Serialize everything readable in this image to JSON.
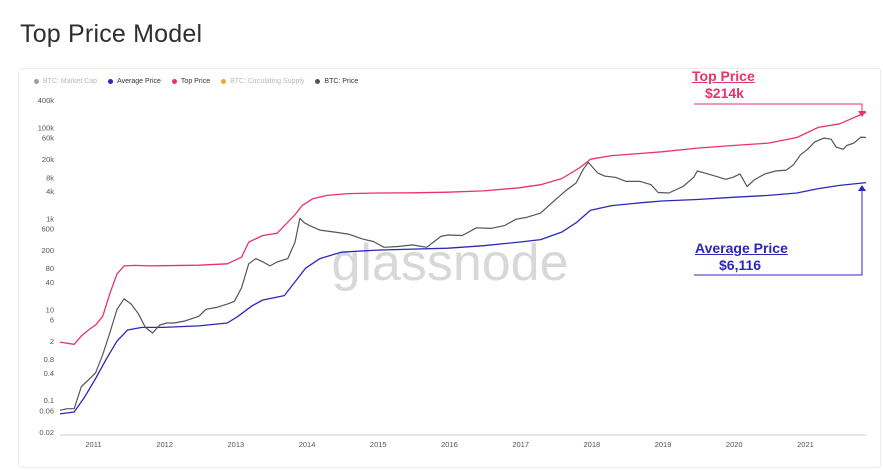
{
  "page": {
    "title": "Top Price Model"
  },
  "watermark": "glassnode",
  "legend": [
    {
      "label": "BTC: Market Cap",
      "color": "#9e9e9e",
      "active": false
    },
    {
      "label": "Average Price",
      "color": "#2c28b8",
      "active": true
    },
    {
      "label": "Top Price",
      "color": "#e8336a",
      "active": true
    },
    {
      "label": "BTC: Circulating Supply",
      "color": "#f5a623",
      "active": false
    },
    {
      "label": "BTC: Price",
      "color": "#555555",
      "active": true
    }
  ],
  "annotations": {
    "top": {
      "title": "Top Price",
      "value": "$214k"
    },
    "average": {
      "title": "Average Price",
      "value": "$6,116"
    }
  },
  "chart_data": {
    "type": "line",
    "title": "",
    "xlabel": "",
    "ylabel": "",
    "y_scale": "log",
    "ylim": [
      0.02,
      400000
    ],
    "xlim": [
      2010.55,
      2021.87
    ],
    "y_ticks": [
      {
        "value": 0.02,
        "label": "0.02"
      },
      {
        "value": 0.06,
        "label": "0.06"
      },
      {
        "value": 0.1,
        "label": "0.1"
      },
      {
        "value": 0.4,
        "label": "0.4"
      },
      {
        "value": 0.8,
        "label": "0.8"
      },
      {
        "value": 2,
        "label": "2"
      },
      {
        "value": 6,
        "label": "6"
      },
      {
        "value": 10,
        "label": "10"
      },
      {
        "value": 40,
        "label": "40"
      },
      {
        "value": 80,
        "label": "80"
      },
      {
        "value": 200,
        "label": "200"
      },
      {
        "value": 600,
        "label": "600"
      },
      {
        "value": 1000,
        "label": "1k"
      },
      {
        "value": 4000,
        "label": "4k"
      },
      {
        "value": 8000,
        "label": "8k"
      },
      {
        "value": 20000,
        "label": "20k"
      },
      {
        "value": 60000,
        "label": "60k"
      },
      {
        "value": 100000,
        "label": "100k"
      },
      {
        "value": 400000,
        "label": "400k"
      }
    ],
    "x_ticks": [
      {
        "value": 2011,
        "label": "2011"
      },
      {
        "value": 2012,
        "label": "2012"
      },
      {
        "value": 2013,
        "label": "2013"
      },
      {
        "value": 2014,
        "label": "2014"
      },
      {
        "value": 2015,
        "label": "2015"
      },
      {
        "value": 2016,
        "label": "2016"
      },
      {
        "value": 2017,
        "label": "2017"
      },
      {
        "value": 2018,
        "label": "2018"
      },
      {
        "value": 2019,
        "label": "2019"
      },
      {
        "value": 2020,
        "label": "2020"
      },
      {
        "value": 2021,
        "label": "2021"
      }
    ],
    "series": [
      {
        "name": "Top Price",
        "color": "#e8336a",
        "points": [
          [
            2010.55,
            1.9
          ],
          [
            2010.75,
            1.7
          ],
          [
            2010.85,
            2.6
          ],
          [
            2010.95,
            3.5
          ],
          [
            2011.05,
            4.5
          ],
          [
            2011.15,
            7
          ],
          [
            2011.25,
            22
          ],
          [
            2011.35,
            60
          ],
          [
            2011.45,
            90
          ],
          [
            2011.6,
            92
          ],
          [
            2011.8,
            90
          ],
          [
            2012.0,
            91
          ],
          [
            2012.5,
            93
          ],
          [
            2012.9,
            100
          ],
          [
            2013.1,
            140
          ],
          [
            2013.2,
            300
          ],
          [
            2013.4,
            420
          ],
          [
            2013.6,
            470
          ],
          [
            2013.85,
            1200
          ],
          [
            2013.95,
            1900
          ],
          [
            2014.1,
            2700
          ],
          [
            2014.3,
            3200
          ],
          [
            2014.6,
            3500
          ],
          [
            2015.0,
            3600
          ],
          [
            2015.5,
            3650
          ],
          [
            2016.0,
            3750
          ],
          [
            2016.5,
            4000
          ],
          [
            2017.0,
            4700
          ],
          [
            2017.3,
            5500
          ],
          [
            2017.6,
            7500
          ],
          [
            2017.85,
            13000
          ],
          [
            2018.0,
            20000
          ],
          [
            2018.3,
            24000
          ],
          [
            2018.6,
            26000
          ],
          [
            2019.0,
            29000
          ],
          [
            2019.5,
            35000
          ],
          [
            2020.0,
            40000
          ],
          [
            2020.5,
            45000
          ],
          [
            2020.9,
            60000
          ],
          [
            2021.2,
            100000
          ],
          [
            2021.5,
            120000
          ],
          [
            2021.87,
            214000
          ]
        ]
      },
      {
        "name": "Average Price",
        "color": "#2c28b8",
        "points": [
          [
            2010.55,
            0.05
          ],
          [
            2010.75,
            0.055
          ],
          [
            2010.9,
            0.12
          ],
          [
            2011.05,
            0.3
          ],
          [
            2011.2,
            0.8
          ],
          [
            2011.35,
            2
          ],
          [
            2011.5,
            3.5
          ],
          [
            2011.7,
            4
          ],
          [
            2012.0,
            4
          ],
          [
            2012.5,
            4.3
          ],
          [
            2012.9,
            5
          ],
          [
            2013.05,
            7
          ],
          [
            2013.25,
            12
          ],
          [
            2013.4,
            16
          ],
          [
            2013.7,
            20
          ],
          [
            2013.85,
            40
          ],
          [
            2014.0,
            80
          ],
          [
            2014.2,
            130
          ],
          [
            2014.5,
            180
          ],
          [
            2015.0,
            200
          ],
          [
            2015.5,
            210
          ],
          [
            2016.0,
            220
          ],
          [
            2016.5,
            250
          ],
          [
            2017.0,
            300
          ],
          [
            2017.3,
            340
          ],
          [
            2017.6,
            500
          ],
          [
            2017.8,
            800
          ],
          [
            2018.0,
            1500
          ],
          [
            2018.3,
            1900
          ],
          [
            2018.7,
            2200
          ],
          [
            2019.0,
            2400
          ],
          [
            2019.5,
            2600
          ],
          [
            2020.0,
            2900
          ],
          [
            2020.5,
            3200
          ],
          [
            2020.9,
            3600
          ],
          [
            2021.2,
            4500
          ],
          [
            2021.5,
            5300
          ],
          [
            2021.87,
            6116
          ]
        ]
      },
      {
        "name": "BTC: Price",
        "color": "#555555",
        "points": [
          [
            2010.55,
            0.06
          ],
          [
            2010.65,
            0.065
          ],
          [
            2010.75,
            0.065
          ],
          [
            2010.85,
            0.2
          ],
          [
            2010.95,
            0.28
          ],
          [
            2011.05,
            0.4
          ],
          [
            2011.15,
            1
          ],
          [
            2011.25,
            3
          ],
          [
            2011.35,
            10
          ],
          [
            2011.45,
            17
          ],
          [
            2011.55,
            13
          ],
          [
            2011.65,
            8
          ],
          [
            2011.75,
            4
          ],
          [
            2011.85,
            3
          ],
          [
            2011.95,
            4.5
          ],
          [
            2012.05,
            5
          ],
          [
            2012.15,
            5
          ],
          [
            2012.3,
            5.5
          ],
          [
            2012.5,
            7
          ],
          [
            2012.6,
            10
          ],
          [
            2012.75,
            11
          ],
          [
            2012.9,
            13
          ],
          [
            2013.0,
            15
          ],
          [
            2013.1,
            30
          ],
          [
            2013.2,
            100
          ],
          [
            2013.3,
            130
          ],
          [
            2013.4,
            110
          ],
          [
            2013.5,
            90
          ],
          [
            2013.6,
            110
          ],
          [
            2013.75,
            130
          ],
          [
            2013.85,
            300
          ],
          [
            2013.92,
            1000
          ],
          [
            2013.98,
            800
          ],
          [
            2014.05,
            700
          ],
          [
            2014.2,
            550
          ],
          [
            2014.4,
            500
          ],
          [
            2014.6,
            450
          ],
          [
            2014.8,
            350
          ],
          [
            2014.95,
            310
          ],
          [
            2015.1,
            230
          ],
          [
            2015.3,
            240
          ],
          [
            2015.5,
            260
          ],
          [
            2015.7,
            230
          ],
          [
            2015.9,
            400
          ],
          [
            2016.0,
            430
          ],
          [
            2016.2,
            420
          ],
          [
            2016.4,
            620
          ],
          [
            2016.6,
            600
          ],
          [
            2016.8,
            700
          ],
          [
            2016.95,
            950
          ],
          [
            2017.1,
            1050
          ],
          [
            2017.3,
            1300
          ],
          [
            2017.5,
            2500
          ],
          [
            2017.65,
            4000
          ],
          [
            2017.8,
            6000
          ],
          [
            2017.9,
            12000
          ],
          [
            2017.97,
            17000
          ],
          [
            2018.1,
            10000
          ],
          [
            2018.2,
            8500
          ],
          [
            2018.35,
            8000
          ],
          [
            2018.5,
            6500
          ],
          [
            2018.7,
            6500
          ],
          [
            2018.85,
            5500
          ],
          [
            2018.95,
            3700
          ],
          [
            2019.1,
            3600
          ],
          [
            2019.3,
            5000
          ],
          [
            2019.45,
            8000
          ],
          [
            2019.5,
            11000
          ],
          [
            2019.6,
            10000
          ],
          [
            2019.75,
            8500
          ],
          [
            2019.9,
            7200
          ],
          [
            2020.0,
            8000
          ],
          [
            2020.1,
            9500
          ],
          [
            2020.2,
            5000
          ],
          [
            2020.3,
            7000
          ],
          [
            2020.45,
            9500
          ],
          [
            2020.6,
            11000
          ],
          [
            2020.75,
            11500
          ],
          [
            2020.85,
            15000
          ],
          [
            2020.95,
            25000
          ],
          [
            2021.05,
            33000
          ],
          [
            2021.15,
            48000
          ],
          [
            2021.28,
            58000
          ],
          [
            2021.38,
            55000
          ],
          [
            2021.45,
            37000
          ],
          [
            2021.55,
            33000
          ],
          [
            2021.6,
            40000
          ],
          [
            2021.7,
            45000
          ],
          [
            2021.8,
            61000
          ],
          [
            2021.87,
            60000
          ]
        ]
      }
    ]
  }
}
